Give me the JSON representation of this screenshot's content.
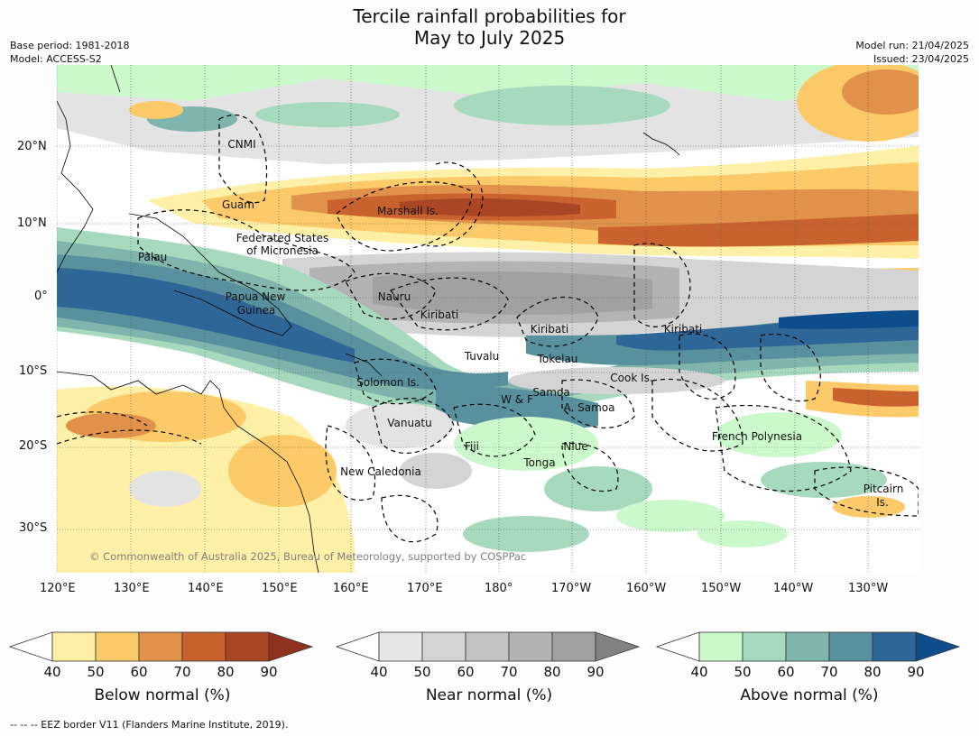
{
  "title": [
    "Tercile rainfall probabilities for",
    "May to July 2025"
  ],
  "meta_left": [
    "Base period: 1981-2018",
    "Model: ACCESS-S2"
  ],
  "meta_right": [
    "Model run: 21/04/2025",
    "Issued: 23/04/2025"
  ],
  "copyright": "© Commonwealth of Australia 2025, Bureau of Meteorology, supported by COSPPac",
  "footnote": "--  --  -- EEZ border V11 (Flanders Marine Institute, 2019).",
  "lat_labels": [
    "20°N",
    "10°N",
    "0°",
    "10°S",
    "20°S",
    "30°S"
  ],
  "lon_labels": [
    "120°E",
    "130°E",
    "140°E",
    "150°E",
    "160°E",
    "170°E",
    "180°",
    "170°W",
    "160°W",
    "150°W",
    "140°W",
    "130°W"
  ],
  "region_labels": [
    "CNMI",
    "Guam",
    "Marshall Is.",
    "Federated States",
    "of Micronesia",
    "Palau",
    "Papua New",
    "Guinea",
    "Nauru",
    "Kiribati",
    "Kiribati",
    "Kiribati",
    "Tuvalu",
    "Tokelau",
    "Cook Is.",
    "Solomon Is.",
    "Samoa",
    "W & F",
    "A. Samoa",
    "Vanuatu",
    "Fiji",
    "Niue",
    "French Polynesia",
    "Tonga",
    "New Caledonia",
    "Pitcairn",
    "Is."
  ],
  "colorbars": [
    {
      "title": "Below normal (%)",
      "ticks": [
        "40",
        "50",
        "60",
        "70",
        "80",
        "90"
      ],
      "colors": [
        "#fef0a7",
        "#fcca68",
        "#e0924a",
        "#c9622f",
        "#aa4624"
      ],
      "extend": "#8f331e"
    },
    {
      "title": "Near normal (%)",
      "ticks": [
        "40",
        "50",
        "60",
        "70",
        "80",
        "90"
      ],
      "colors": [
        "#e6e6e6",
        "#d4d4d4",
        "#c2c2c2",
        "#b3b3b3",
        "#a1a1a1"
      ],
      "extend": "#828282"
    },
    {
      "title": "Above normal (%)",
      "ticks": [
        "40",
        "50",
        "60",
        "70",
        "80",
        "90"
      ],
      "colors": [
        "#ccf9cc",
        "#a7d9bd",
        "#80b5ad",
        "#58909e",
        "#2f6698"
      ],
      "extend": "#0e4d8c"
    }
  ],
  "legend_colors": {
    "land_outline": "#000000",
    "eez_border": "#000000"
  }
}
